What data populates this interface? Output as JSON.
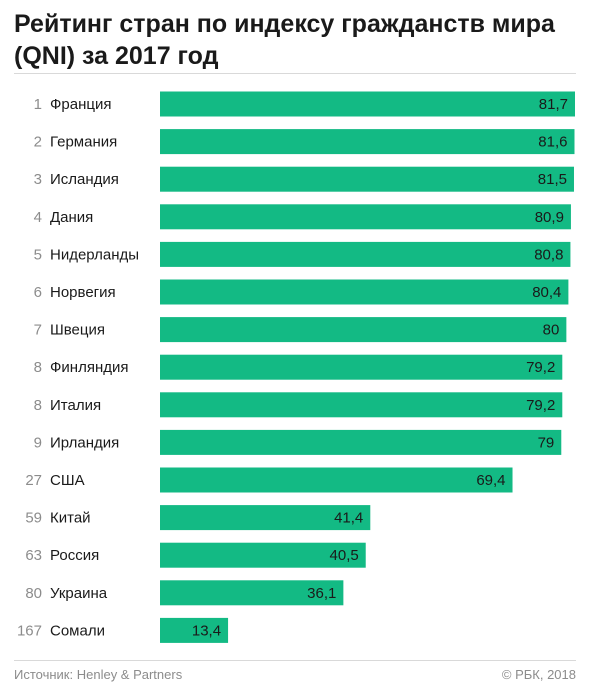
{
  "title": "Рейтинг стран по индексу гражданств мира (QNI) за 2017 год",
  "source": "Источник: Henley & Partners",
  "copyright": "© РБК, 2018",
  "colors": {
    "bar": "#13ba84"
  },
  "chart_data": {
    "type": "bar",
    "orientation": "horizontal",
    "title": "Рейтинг стран по индексу гражданств мира (QNI) за 2017 год",
    "xlim": [
      0,
      81.7
    ],
    "grid": false,
    "ranks": [
      "1",
      "2",
      "3",
      "4",
      "5",
      "6",
      "7",
      "8",
      "8",
      "9",
      "27",
      "59",
      "63",
      "80",
      "167"
    ],
    "categories": [
      "Франция",
      "Германия",
      "Исландия",
      "Дания",
      "Нидерланды",
      "Норвегия",
      "Швеция",
      "Финляндия",
      "Италия",
      "Ирландия",
      "США",
      "Китай",
      "Россия",
      "Украина",
      "Сомали"
    ],
    "values": [
      81.7,
      81.6,
      81.5,
      80.9,
      80.8,
      80.4,
      80,
      79.2,
      79.2,
      79,
      69.4,
      41.4,
      40.5,
      36.1,
      13.4
    ],
    "value_labels": [
      "81,7",
      "81,6",
      "81,5",
      "80,9",
      "80,8",
      "80,4",
      "80",
      "79,2",
      "79,2",
      "79",
      "69,4",
      "41,4",
      "40,5",
      "36,1",
      "13,4"
    ]
  }
}
